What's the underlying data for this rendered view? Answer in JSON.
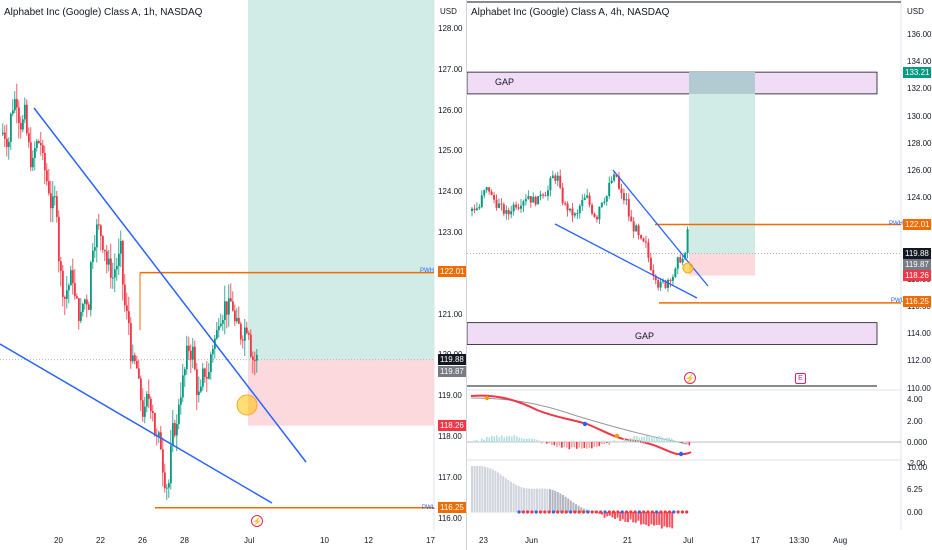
{
  "left_chart": {
    "title": "Alphabet Inc (Google) Class A, 1h, NASDAQ",
    "currency": "USD",
    "y_ticks": [
      "128.00",
      "127.00",
      "126.00",
      "125.00",
      "124.00",
      "123.00",
      "122.00",
      "121.00",
      "120.00",
      "119.00",
      "118.00",
      "117.00",
      "116.00"
    ],
    "x_ticks": [
      "20",
      "22",
      "26",
      "28",
      "Jul",
      "10",
      "12",
      "17"
    ],
    "pwh_label": "PWH",
    "pwh_value": "122.01",
    "pwl_label": "PWL",
    "pwl_value": "116.25",
    "price_a": "119.88",
    "price_b": "119.87",
    "stop_value": "118.26"
  },
  "right_chart": {
    "title": "Alphabet Inc (Google) Class A, 4h, NASDAQ",
    "currency": "USD",
    "y_ticks": [
      "136.00",
      "134.00",
      "132.00",
      "130.00",
      "128.00",
      "126.00",
      "124.00",
      "122.00",
      "120.00",
      "118.00",
      "116.00",
      "114.00",
      "112.00",
      "110.00"
    ],
    "x_ticks": [
      "23",
      "Jun",
      "21",
      "Jul",
      "17",
      "13:30",
      "Aug"
    ],
    "target_value": "133.21",
    "pwh_label": "PWH",
    "pwh_value": "122.01",
    "pwl_label": "PWL",
    "pwl_value": "116.25",
    "price_a": "119.88",
    "price_b": "119.87",
    "stop_value": "118.26",
    "gap_top_label": "GAP",
    "gap_bottom_label": "GAP",
    "osc1_ticks": [
      "4.00",
      "2.00",
      "0.000",
      "-2.00"
    ],
    "osc2_ticks": [
      "10.00",
      "6.25",
      "0.00"
    ],
    "event_icon": "lightning-icon",
    "earnings_icon": "E"
  },
  "colors": {
    "up": "#089981",
    "down": "#f23645",
    "trend": "#2962ff",
    "level": "#ef6c00",
    "target_zone": "#d1ece6",
    "stop_zone": "#fcd9dc",
    "gap_zone": "#f0dcf5"
  }
}
